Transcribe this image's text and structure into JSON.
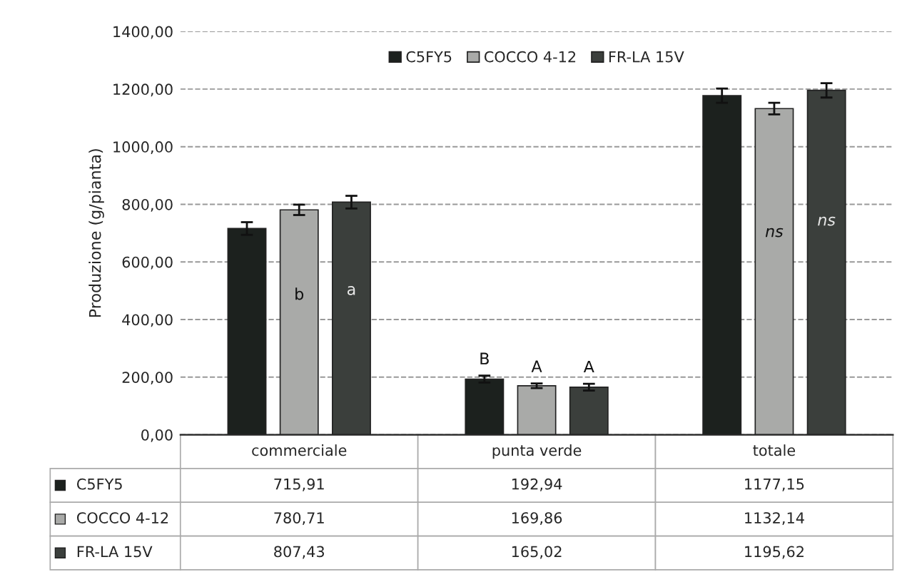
{
  "chart_data": {
    "type": "bar",
    "ylabel": "Produzione (g/pianta)",
    "categories": [
      "commerciale",
      "punta verde",
      "totale"
    ],
    "series": [
      {
        "name": "C5FY5",
        "color": "#1c211e",
        "values": [
          715.91,
          192.94,
          1177.15
        ],
        "errors": [
          22,
          12,
          25
        ],
        "value_labels": [
          "715,91",
          "192,94",
          "1177,15"
        ]
      },
      {
        "name": "COCCO 4-12",
        "color": "#a9aaa8",
        "values": [
          780.71,
          169.86,
          1132.14
        ],
        "errors": [
          18,
          8,
          20
        ],
        "value_labels": [
          "780,71",
          "169,86",
          "1132,14"
        ]
      },
      {
        "name": "FR-LA 15V",
        "color": "#3b3f3c",
        "values": [
          807.43,
          165.02,
          1195.62
        ],
        "errors": [
          22,
          12,
          25
        ],
        "value_labels": [
          "807,43",
          "165,02",
          "1195,62"
        ]
      }
    ],
    "ylim": [
      0,
      1400
    ],
    "yticks": [
      {
        "value": 0,
        "label": "0,00"
      },
      {
        "value": 200,
        "label": "200,00"
      },
      {
        "value": 400,
        "label": "400,00"
      },
      {
        "value": 600,
        "label": "600,00"
      },
      {
        "value": 800,
        "label": "800,00"
      },
      {
        "value": 1000,
        "label": "1000,00"
      },
      {
        "value": 1200,
        "label": "1200,00"
      },
      {
        "value": 1400,
        "label": "1400,00"
      }
    ],
    "annotations": [
      "b",
      "a",
      "B",
      "A",
      "A",
      "ns",
      "ns"
    ],
    "grid": "y",
    "legend": "top"
  }
}
